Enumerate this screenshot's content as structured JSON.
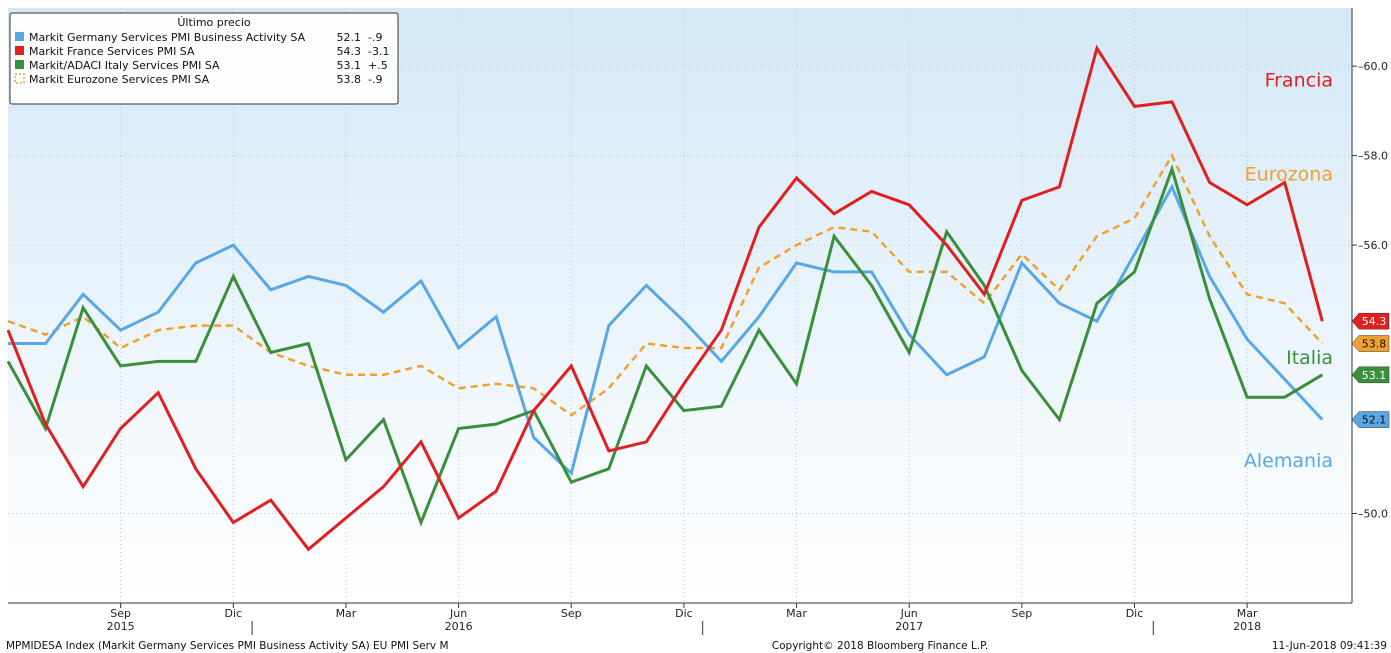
{
  "chart_data": {
    "type": "line",
    "x": [
      "2015-06",
      "2015-07",
      "2015-08",
      "2015-09",
      "2015-10",
      "2015-11",
      "2015-12",
      "2016-01",
      "2016-02",
      "2016-03",
      "2016-04",
      "2016-05",
      "2016-06",
      "2016-07",
      "2016-08",
      "2016-09",
      "2016-10",
      "2016-11",
      "2016-12",
      "2017-01",
      "2017-02",
      "2017-03",
      "2017-04",
      "2017-05",
      "2017-06",
      "2017-07",
      "2017-08",
      "2017-09",
      "2017-10",
      "2017-11",
      "2017-12",
      "2018-01",
      "2018-02",
      "2018-03",
      "2018-04",
      "2018-05"
    ],
    "series": [
      {
        "name": "Markit Germany Services PMI Business Activity SA",
        "color": "#5aa7e6",
        "dashed": false,
        "values": [
          53.8,
          53.8,
          54.9,
          54.1,
          54.5,
          55.6,
          56.0,
          55.0,
          55.3,
          55.1,
          54.5,
          55.2,
          53.7,
          54.4,
          51.7,
          50.9,
          54.2,
          55.1,
          54.3,
          53.4,
          54.4,
          55.6,
          55.4,
          55.4,
          54.0,
          53.1,
          53.5,
          55.6,
          54.7,
          54.3,
          55.8,
          57.3,
          55.3,
          53.9,
          53.0,
          52.1
        ]
      },
      {
        "name": "Markit France Services PMI SA",
        "color": "#e02020",
        "dashed": false,
        "values": [
          54.1,
          52.0,
          50.6,
          51.9,
          52.7,
          51.0,
          49.8,
          50.3,
          49.2,
          49.9,
          50.6,
          51.6,
          49.9,
          50.5,
          52.3,
          53.3,
          51.4,
          51.6,
          52.9,
          54.1,
          56.4,
          57.5,
          56.7,
          57.2,
          56.9,
          56.0,
          54.9,
          57.0,
          57.3,
          60.4,
          59.1,
          59.2,
          57.4,
          56.9,
          57.4,
          54.3
        ]
      },
      {
        "name": "Markit/ADACI Italy Services PMI SA",
        "color": "#3a8f3a",
        "dashed": false,
        "values": [
          53.4,
          51.9,
          54.6,
          53.3,
          53.4,
          53.4,
          55.3,
          53.6,
          53.8,
          51.2,
          52.1,
          49.8,
          51.9,
          52.0,
          52.3,
          50.7,
          51.0,
          53.3,
          52.3,
          52.4,
          54.1,
          52.9,
          56.2,
          55.1,
          53.6,
          56.3,
          55.1,
          53.2,
          52.1,
          54.7,
          55.4,
          57.7,
          54.8,
          52.6,
          52.6,
          53.1
        ]
      },
      {
        "name": "Markit Eurozone Services PMI SA",
        "color": "#f0a030",
        "dashed": true,
        "values": [
          54.3,
          54.0,
          54.4,
          53.7,
          54.1,
          54.2,
          54.2,
          53.6,
          53.3,
          53.1,
          53.1,
          53.3,
          52.8,
          52.9,
          52.8,
          52.2,
          52.8,
          53.8,
          53.7,
          53.7,
          55.5,
          56.0,
          56.4,
          56.3,
          55.4,
          55.4,
          54.7,
          55.8,
          55.0,
          56.2,
          56.6,
          58.0,
          56.2,
          54.9,
          54.7,
          53.8
        ]
      }
    ],
    "ylim": [
      48.0,
      61.3
    ],
    "yticks": [
      "50.0",
      "56.0",
      "58.0",
      "60.0"
    ],
    "grid": true,
    "legend_placement": "top-left",
    "legend": {
      "title": "Último precio",
      "items": [
        {
          "name": "Markit Germany Services PMI Business Activity SA",
          "last": "52.1",
          "change": "-.9",
          "color": "#5aa7e6",
          "dashed": false
        },
        {
          "name": "Markit France Services PMI SA",
          "last": "54.3",
          "change": "-3.1",
          "color": "#e02020",
          "dashed": false
        },
        {
          "name": "Markit/ADACI Italy Services PMI SA",
          "last": "53.1",
          "change": "+.5",
          "color": "#3a8f3a",
          "dashed": false
        },
        {
          "name": "Markit Eurozone Services PMI SA",
          "last": "53.8",
          "change": "-.9",
          "color": "#f0a030",
          "dashed": true
        }
      ]
    },
    "last_value_tags": [
      {
        "label": "54.3",
        "value": 54.3,
        "bg": "#e02020",
        "fg": "#ffffff"
      },
      {
        "label": "53.8",
        "value": 53.8,
        "bg": "#f0a030",
        "fg": "#111111"
      },
      {
        "label": "53.1",
        "value": 53.1,
        "bg": "#3a8f3a",
        "fg": "#ffffff"
      },
      {
        "label": "52.1",
        "value": 52.1,
        "bg": "#5aa7e6",
        "fg": "#111111"
      }
    ],
    "annotations": [
      {
        "text": "Francia",
        "color": "#e02020",
        "value": 59.7
      },
      {
        "text": "Eurozona",
        "color": "#f0a030",
        "value": 57.6
      },
      {
        "text": "Italia",
        "color": "#3a8f3a",
        "value": 53.5
      },
      {
        "text": "Alemania",
        "color": "#5aa7e6",
        "value": 51.2
      }
    ],
    "x_ticks": [
      {
        "label": "Sep",
        "x": "2015-09",
        "year": "2015"
      },
      {
        "label": "Dic",
        "x": "2015-12",
        "year": ""
      },
      {
        "label": "Mar",
        "x": "2016-03",
        "year": ""
      },
      {
        "label": "Jun",
        "x": "2016-06",
        "year": "2016"
      },
      {
        "label": "Sep",
        "x": "2016-09",
        "year": ""
      },
      {
        "label": "Dic",
        "x": "2016-12",
        "year": ""
      },
      {
        "label": "Mar",
        "x": "2017-03",
        "year": ""
      },
      {
        "label": "Jun",
        "x": "2017-06",
        "year": "2017"
      },
      {
        "label": "Sep",
        "x": "2017-09",
        "year": ""
      },
      {
        "label": "Dic",
        "x": "2017-12",
        "year": ""
      },
      {
        "label": "Mar",
        "x": "2018-03",
        "year": "2018"
      }
    ]
  },
  "footer": {
    "left": "MPMIDESA Index (Markit Germany Services PMI Business Activity SA) EU PMI Serv  M",
    "center": "Copyright© 2018 Bloomberg Finance L.P.",
    "right": "11-Jun-2018 09:41:39"
  },
  "colors": {
    "plot_bg_top": "#d4e8f7",
    "plot_bg_bottom": "#ffffff",
    "grid": "#b8c6d2"
  }
}
